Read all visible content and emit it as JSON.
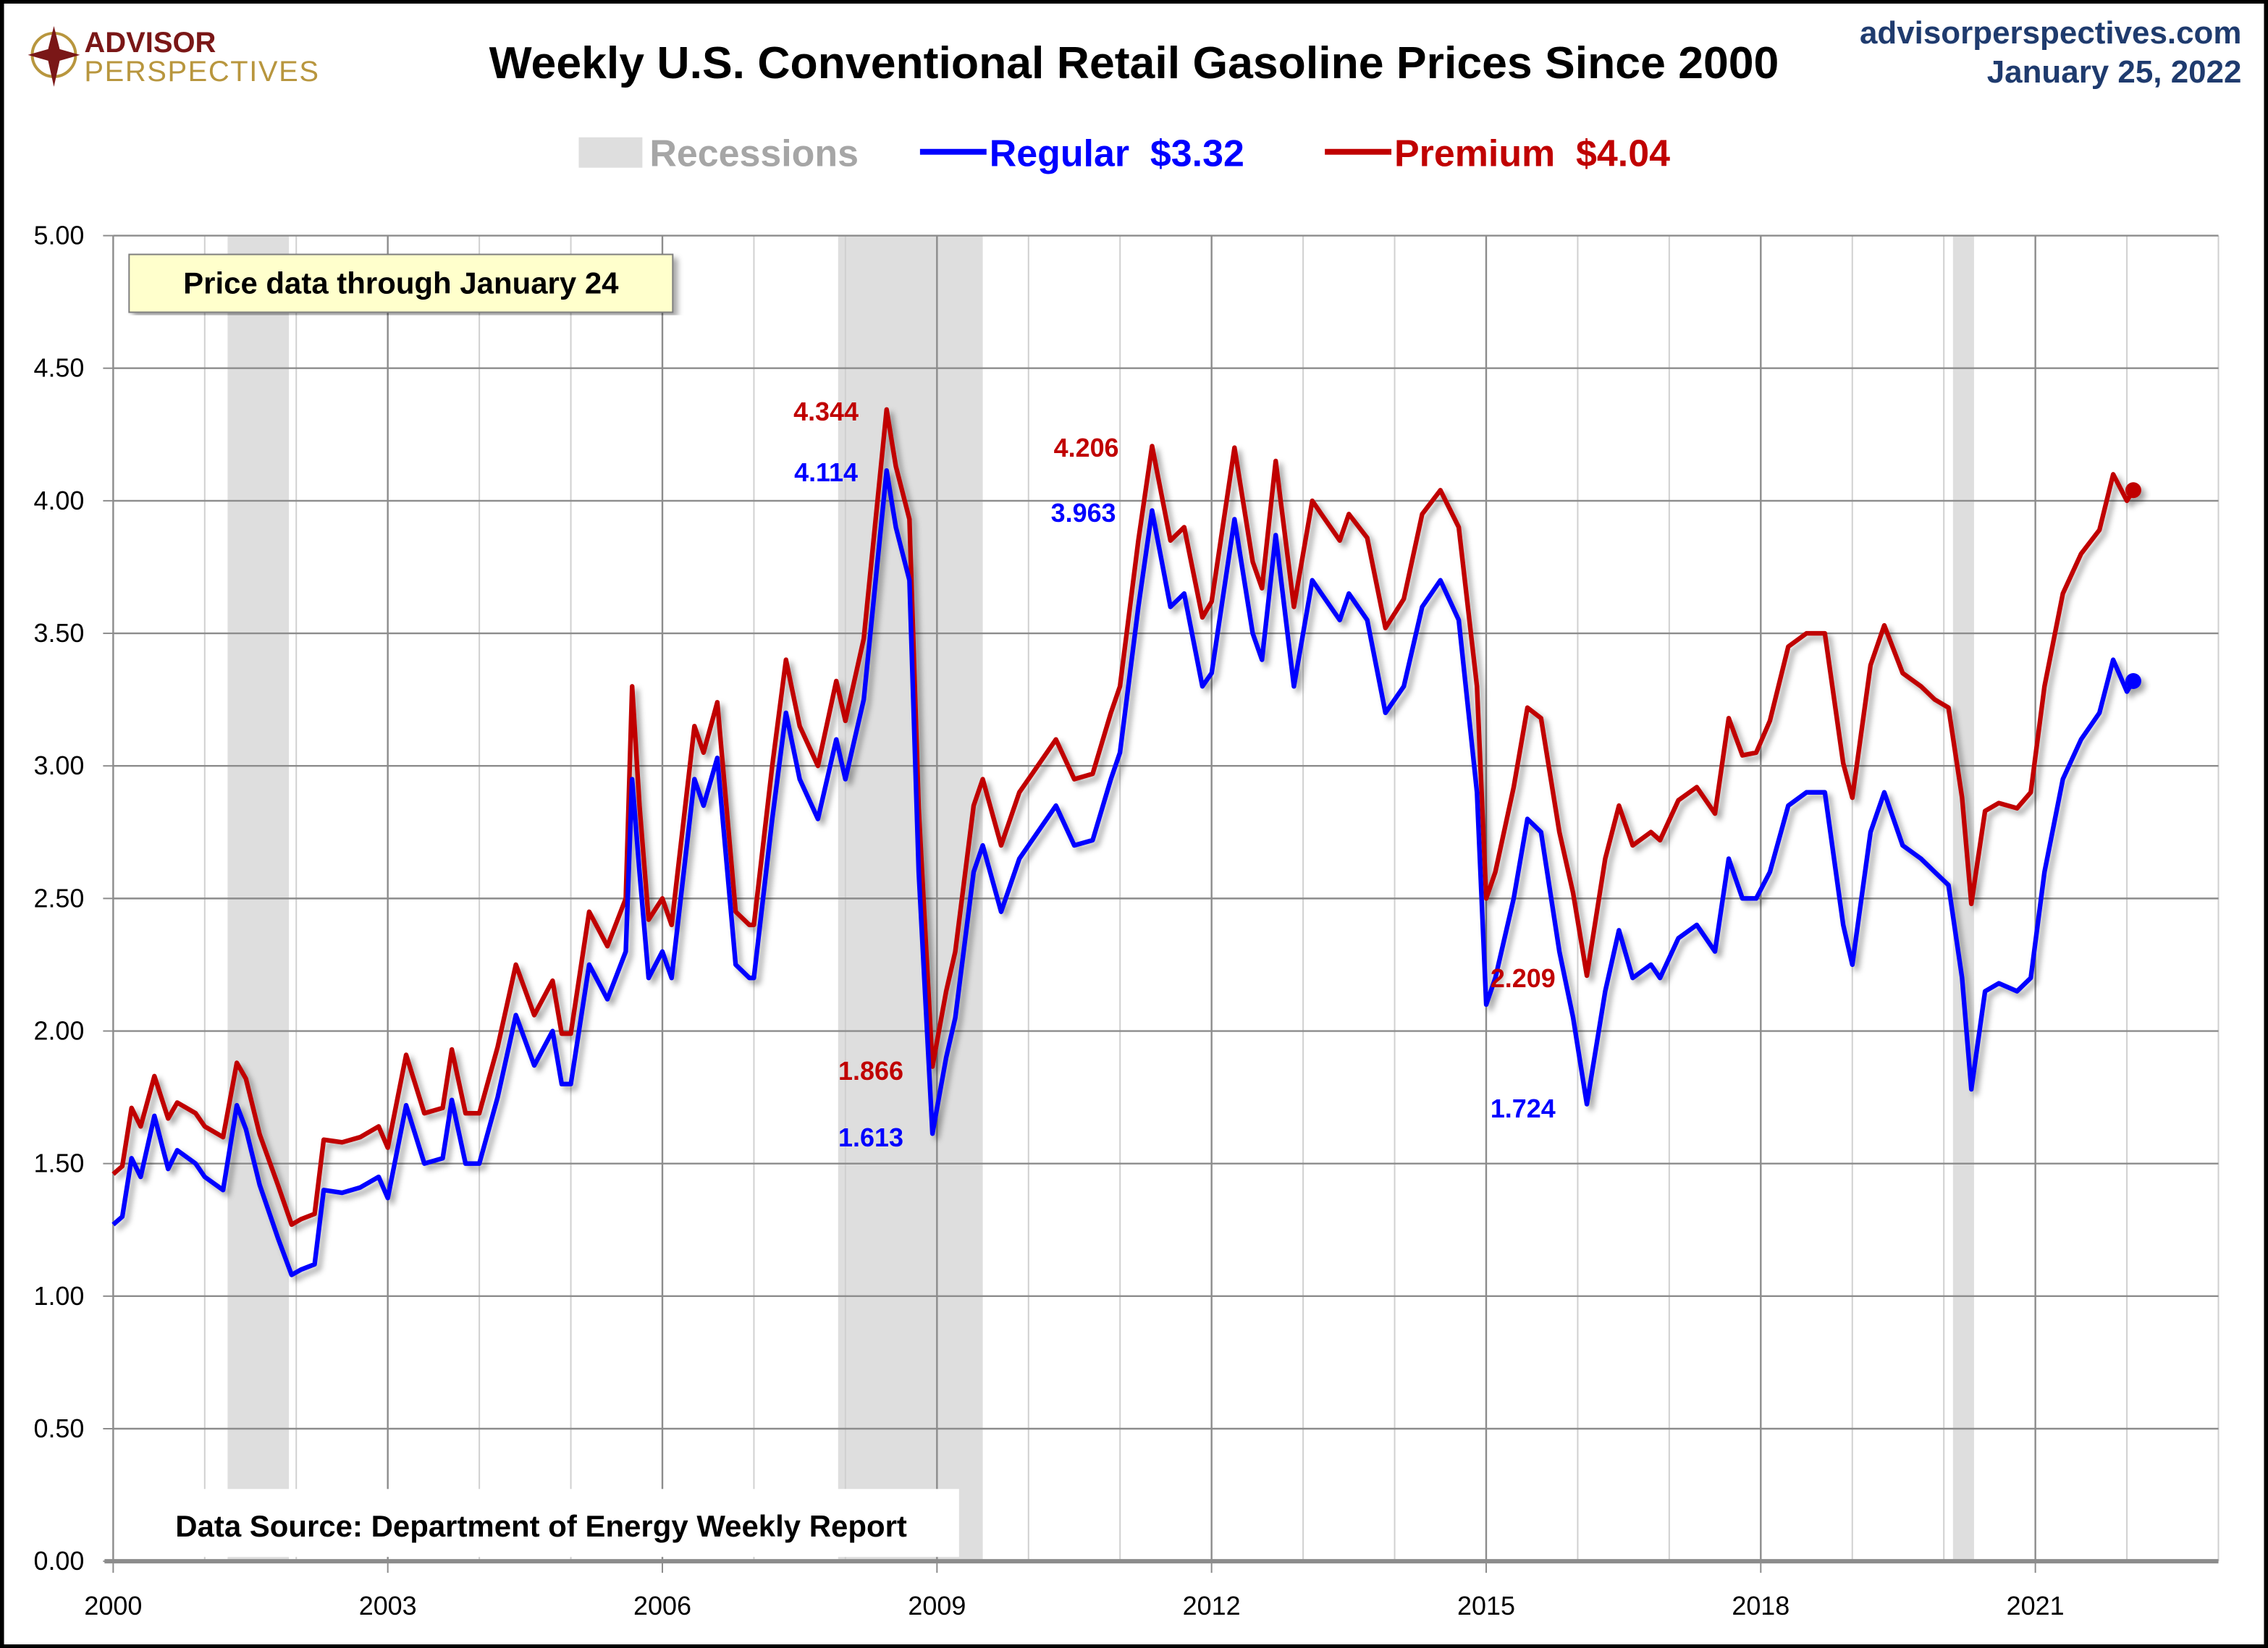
{
  "header": {
    "logo_text": [
      "ADVISOR",
      "PERSPECTIVES"
    ],
    "title": "Weekly U.S. Conventional Retail Gasoline Prices Since 2000",
    "site": "advisorperspectives.com",
    "date": "January 25, 2022"
  },
  "legend": {
    "recessions": "Recessions",
    "regular": "Regular  $3.32",
    "premium": "Premium  $4.04"
  },
  "notes": {
    "price_through": "Price data through January 24",
    "source": "Data Source: Department of Energy Weekly Report"
  },
  "colors": {
    "regular": "#0000ff",
    "premium": "#c00000",
    "recession": "#dedede",
    "site": "#1f3b6e"
  },
  "chart_data": {
    "type": "line",
    "title": "Weekly U.S. Conventional Retail Gasoline Prices Since 2000",
    "xlim": [
      2000,
      2023
    ],
    "ylim": [
      0,
      5
    ],
    "x_ticks": [
      "2000",
      "2003",
      "2006",
      "2009",
      "2012",
      "2015",
      "2018",
      "2021"
    ],
    "y_ticks": [
      "0.00",
      "0.50",
      "1.00",
      "1.50",
      "2.00",
      "2.50",
      "3.00",
      "3.50",
      "4.00",
      "4.50",
      "5.00"
    ],
    "grid": true,
    "legend_position": "top-center",
    "recessions": [
      [
        2001.25,
        2001.92
      ],
      [
        2007.92,
        2009.5
      ],
      [
        2020.1,
        2020.33
      ]
    ],
    "x": [
      2000.0,
      2000.1,
      2000.2,
      2000.3,
      2000.45,
      2000.6,
      2000.7,
      2000.9,
      2001.0,
      2001.2,
      2001.35,
      2001.45,
      2001.6,
      2001.8,
      2001.95,
      2002.05,
      2002.2,
      2002.3,
      2002.5,
      2002.7,
      2002.9,
      2003.0,
      2003.2,
      2003.4,
      2003.6,
      2003.7,
      2003.85,
      2004.0,
      2004.2,
      2004.4,
      2004.6,
      2004.8,
      2004.9,
      2005.0,
      2005.2,
      2005.4,
      2005.6,
      2005.67,
      2005.75,
      2005.85,
      2006.0,
      2006.1,
      2006.35,
      2006.45,
      2006.6,
      2006.8,
      2006.95,
      2007.0,
      2007.2,
      2007.35,
      2007.5,
      2007.7,
      2007.9,
      2008.0,
      2008.2,
      2008.45,
      2008.55,
      2008.7,
      2008.8,
      2008.95,
      2009.1,
      2009.2,
      2009.4,
      2009.5,
      2009.7,
      2009.9,
      2010.1,
      2010.3,
      2010.5,
      2010.7,
      2010.9,
      2011.0,
      2011.2,
      2011.35,
      2011.55,
      2011.7,
      2011.9,
      2012.0,
      2012.25,
      2012.45,
      2012.55,
      2012.7,
      2012.9,
      2013.1,
      2013.2,
      2013.4,
      2013.5,
      2013.7,
      2013.9,
      2014.1,
      2014.3,
      2014.5,
      2014.7,
      2014.9,
      2015.0,
      2015.1,
      2015.3,
      2015.45,
      2015.6,
      2015.8,
      2015.95,
      2016.1,
      2016.3,
      2016.45,
      2016.6,
      2016.8,
      2016.9,
      2017.1,
      2017.3,
      2017.5,
      2017.65,
      2017.8,
      2017.95,
      2018.1,
      2018.3,
      2018.5,
      2018.7,
      2018.9,
      2019.0,
      2019.2,
      2019.35,
      2019.55,
      2019.75,
      2019.9,
      2020.05,
      2020.2,
      2020.3,
      2020.45,
      2020.6,
      2020.8,
      2020.95,
      2021.1,
      2021.3,
      2021.5,
      2021.7,
      2021.85,
      2022.0,
      2022.07
    ],
    "series": [
      {
        "name": "Regular",
        "color": "#0000ff",
        "last": "$3.32",
        "values": [
          1.27,
          1.3,
          1.52,
          1.45,
          1.68,
          1.48,
          1.55,
          1.5,
          1.45,
          1.4,
          1.72,
          1.63,
          1.42,
          1.22,
          1.08,
          1.1,
          1.12,
          1.4,
          1.39,
          1.41,
          1.45,
          1.37,
          1.72,
          1.5,
          1.52,
          1.74,
          1.5,
          1.5,
          1.75,
          2.06,
          1.87,
          2.0,
          1.8,
          1.8,
          2.25,
          2.12,
          2.3,
          2.95,
          2.6,
          2.2,
          2.3,
          2.2,
          2.95,
          2.85,
          3.03,
          2.25,
          2.2,
          2.2,
          2.8,
          3.2,
          2.95,
          2.8,
          3.1,
          2.95,
          3.25,
          4.114,
          3.9,
          3.7,
          2.6,
          1.613,
          1.9,
          2.05,
          2.6,
          2.7,
          2.45,
          2.65,
          2.75,
          2.85,
          2.7,
          2.72,
          2.95,
          3.05,
          3.6,
          3.963,
          3.6,
          3.65,
          3.3,
          3.35,
          3.93,
          3.5,
          3.4,
          3.87,
          3.3,
          3.7,
          3.65,
          3.55,
          3.65,
          3.55,
          3.2,
          3.3,
          3.6,
          3.7,
          3.55,
          2.9,
          2.1,
          2.2,
          2.5,
          2.8,
          2.75,
          2.3,
          2.05,
          1.724,
          2.15,
          2.38,
          2.2,
          2.25,
          2.2,
          2.35,
          2.4,
          2.3,
          2.65,
          2.5,
          2.5,
          2.6,
          2.85,
          2.9,
          2.9,
          2.4,
          2.25,
          2.75,
          2.9,
          2.7,
          2.65,
          2.6,
          2.55,
          2.2,
          1.78,
          2.15,
          2.18,
          2.15,
          2.2,
          2.6,
          2.95,
          3.1,
          3.2,
          3.4,
          3.28,
          3.32
        ]
      },
      {
        "name": "Premium",
        "color": "#c00000",
        "last": "$4.04",
        "values": [
          1.46,
          1.49,
          1.71,
          1.64,
          1.83,
          1.67,
          1.73,
          1.69,
          1.64,
          1.6,
          1.88,
          1.82,
          1.61,
          1.42,
          1.27,
          1.29,
          1.31,
          1.59,
          1.58,
          1.6,
          1.64,
          1.56,
          1.91,
          1.69,
          1.71,
          1.93,
          1.69,
          1.69,
          1.94,
          2.25,
          2.06,
          2.19,
          1.99,
          1.99,
          2.45,
          2.32,
          2.5,
          3.3,
          2.85,
          2.42,
          2.5,
          2.4,
          3.15,
          3.05,
          3.24,
          2.45,
          2.4,
          2.4,
          3.0,
          3.4,
          3.15,
          3.0,
          3.32,
          3.17,
          3.48,
          4.344,
          4.13,
          3.93,
          2.84,
          1.866,
          2.15,
          2.3,
          2.85,
          2.95,
          2.7,
          2.9,
          3.0,
          3.1,
          2.95,
          2.97,
          3.2,
          3.3,
          3.85,
          4.206,
          3.85,
          3.9,
          3.56,
          3.62,
          4.2,
          3.77,
          3.67,
          4.15,
          3.6,
          4.0,
          3.95,
          3.85,
          3.95,
          3.86,
          3.52,
          3.63,
          3.95,
          4.04,
          3.9,
          3.3,
          2.5,
          2.6,
          2.92,
          3.22,
          3.18,
          2.75,
          2.52,
          2.209,
          2.65,
          2.85,
          2.7,
          2.75,
          2.72,
          2.87,
          2.92,
          2.82,
          3.18,
          3.04,
          3.05,
          3.17,
          3.45,
          3.5,
          3.5,
          3.01,
          2.88,
          3.38,
          3.53,
          3.35,
          3.3,
          3.25,
          3.22,
          2.88,
          2.48,
          2.83,
          2.86,
          2.84,
          2.9,
          3.3,
          3.65,
          3.8,
          3.89,
          4.1,
          4.0,
          4.04
        ]
      }
    ],
    "annotations": [
      {
        "text": "4.344",
        "series": "Premium",
        "x": 2008.45
      },
      {
        "text": "4.114",
        "series": "Regular",
        "x": 2008.45
      },
      {
        "text": "4.206",
        "series": "Premium",
        "x": 2011.35
      },
      {
        "text": "3.963",
        "series": "Regular",
        "x": 2011.35
      },
      {
        "text": "1.866",
        "series": "Premium",
        "x": 2008.95
      },
      {
        "text": "1.613",
        "series": "Regular",
        "x": 2008.95
      },
      {
        "text": "2.209",
        "series": "Premium",
        "x": 2016.1
      },
      {
        "text": "1.724",
        "series": "Regular",
        "x": 2016.1
      }
    ]
  }
}
